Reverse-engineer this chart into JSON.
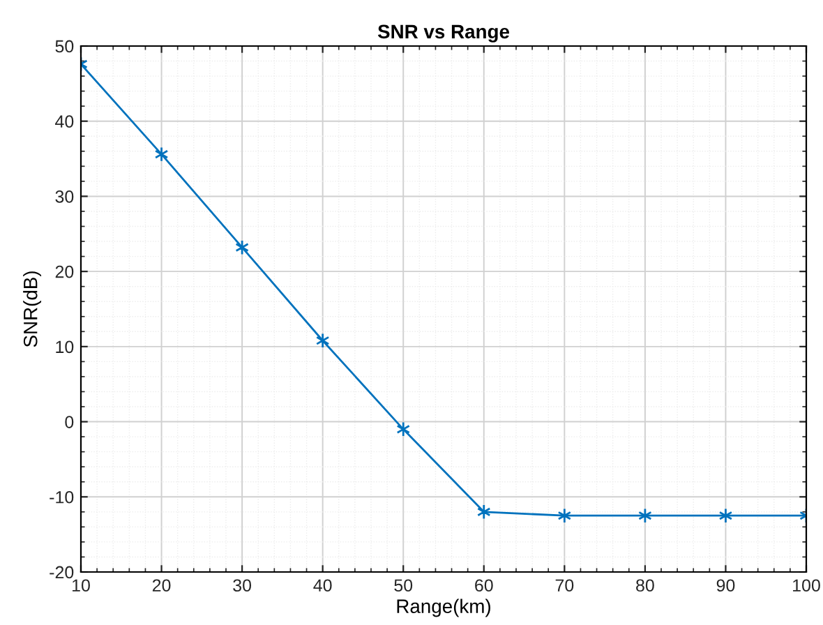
{
  "chart_data": {
    "type": "line",
    "title": "SNR vs Range",
    "xlabel": "Range(km)",
    "ylabel": "SNR(dB)",
    "x": [
      10,
      20,
      30,
      40,
      50,
      60,
      70,
      80,
      90,
      100
    ],
    "series": [
      {
        "color": "#0072bd",
        "values": [
          47.6,
          35.6,
          23.2,
          10.8,
          -1.0,
          -12.0,
          -12.5,
          -12.5,
          -12.5,
          -12.5
        ]
      }
    ],
    "xlim": [
      10,
      100
    ],
    "xticks": [
      10,
      20,
      30,
      40,
      50,
      60,
      70,
      80,
      90,
      100
    ],
    "ylim": [
      -20,
      50
    ],
    "yticks": [
      -20,
      -10,
      0,
      10,
      20,
      30,
      40,
      50
    ],
    "grid": true,
    "marker": "cross",
    "line_style": "solid"
  }
}
